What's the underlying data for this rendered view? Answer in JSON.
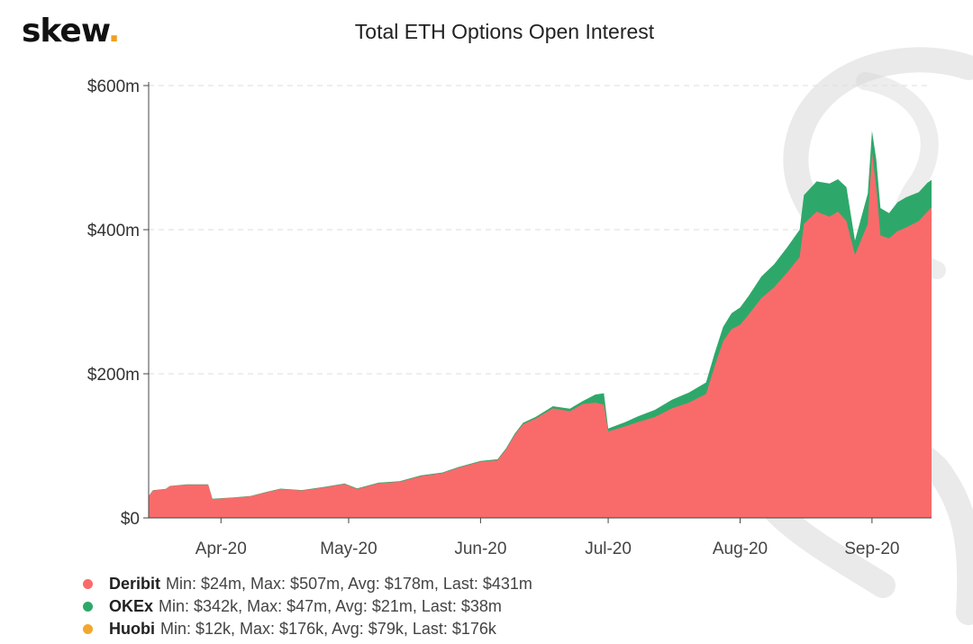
{
  "header": {
    "logo_text": "skew",
    "logo_dot": ".",
    "logo_dot_color": "#f0a020"
  },
  "chart_data": {
    "type": "area",
    "stacked": true,
    "title": "Total ETH Options Open Interest",
    "xlabel": "",
    "ylabel": "",
    "y_tick_labels": [
      "$0",
      "$200m",
      "$400m",
      "$600m"
    ],
    "y_ticks": [
      0,
      200,
      400,
      600
    ],
    "ylim": [
      0,
      600
    ],
    "y_units": "millions USD",
    "xlim": [
      "2020-03-15",
      "2020-09-15"
    ],
    "x_tick_labels": [
      "Apr-20",
      "May-20",
      "Jun-20",
      "Jul-20",
      "Aug-20",
      "Sep-20"
    ],
    "x_ticks": [
      "2020-04-01",
      "2020-05-01",
      "2020-06-01",
      "2020-07-01",
      "2020-08-01",
      "2020-09-01"
    ],
    "grid": true,
    "legend_position": "bottom-left",
    "series": [
      {
        "name": "Deribit",
        "color": "#f96b6b",
        "legend_stats": "Min: $24m, Max: $507m, Avg: $178m, Last: $431m",
        "points": [
          [
            "2020-03-15",
            30
          ],
          [
            "2020-03-16",
            38
          ],
          [
            "2020-03-19",
            40
          ],
          [
            "2020-03-20",
            44
          ],
          [
            "2020-03-24",
            46
          ],
          [
            "2020-03-29",
            46
          ],
          [
            "2020-03-30",
            26
          ],
          [
            "2020-04-04",
            28
          ],
          [
            "2020-04-08",
            30
          ],
          [
            "2020-04-12",
            36
          ],
          [
            "2020-04-15",
            40
          ],
          [
            "2020-04-20",
            38
          ],
          [
            "2020-04-25",
            42
          ],
          [
            "2020-04-30",
            47
          ],
          [
            "2020-05-03",
            40
          ],
          [
            "2020-05-08",
            48
          ],
          [
            "2020-05-13",
            50
          ],
          [
            "2020-05-18",
            58
          ],
          [
            "2020-05-23",
            62
          ],
          [
            "2020-05-27",
            70
          ],
          [
            "2020-06-01",
            78
          ],
          [
            "2020-06-05",
            80
          ],
          [
            "2020-06-07",
            95
          ],
          [
            "2020-06-09",
            115
          ],
          [
            "2020-06-11",
            130
          ],
          [
            "2020-06-14",
            138
          ],
          [
            "2020-06-18",
            152
          ],
          [
            "2020-06-22",
            148
          ],
          [
            "2020-06-25",
            158
          ],
          [
            "2020-06-28",
            160
          ],
          [
            "2020-06-30",
            157
          ],
          [
            "2020-07-01",
            120
          ],
          [
            "2020-07-05",
            127
          ],
          [
            "2020-07-08",
            133
          ],
          [
            "2020-07-12",
            140
          ],
          [
            "2020-07-16",
            152
          ],
          [
            "2020-07-20",
            160
          ],
          [
            "2020-07-24",
            172
          ],
          [
            "2020-07-26",
            210
          ],
          [
            "2020-07-28",
            245
          ],
          [
            "2020-07-30",
            262
          ],
          [
            "2020-08-01",
            268
          ],
          [
            "2020-08-03",
            282
          ],
          [
            "2020-08-06",
            305
          ],
          [
            "2020-08-09",
            320
          ],
          [
            "2020-08-12",
            340
          ],
          [
            "2020-08-15",
            362
          ],
          [
            "2020-08-16",
            408
          ],
          [
            "2020-08-19",
            425
          ],
          [
            "2020-08-22",
            418
          ],
          [
            "2020-08-24",
            425
          ],
          [
            "2020-08-26",
            412
          ],
          [
            "2020-08-28",
            365
          ],
          [
            "2020-08-31",
            408
          ],
          [
            "2020-09-01",
            507
          ],
          [
            "2020-09-02",
            458
          ],
          [
            "2020-09-03",
            392
          ],
          [
            "2020-09-05",
            388
          ],
          [
            "2020-09-07",
            398
          ],
          [
            "2020-09-09",
            403
          ],
          [
            "2020-09-12",
            412
          ],
          [
            "2020-09-14",
            425
          ],
          [
            "2020-09-15",
            431
          ]
        ]
      },
      {
        "name": "OKEx",
        "color": "#2ea86a",
        "legend_stats": "Min: $342k, Max: $47m, Avg: $21m, Last: $38m",
        "points": [
          [
            "2020-03-15",
            0.4
          ],
          [
            "2020-03-30",
            0.5
          ],
          [
            "2020-04-15",
            0.6
          ],
          [
            "2020-05-01",
            0.8
          ],
          [
            "2020-05-15",
            1
          ],
          [
            "2020-06-01",
            1
          ],
          [
            "2020-06-11",
            2
          ],
          [
            "2020-06-25",
            4
          ],
          [
            "2020-06-30",
            16
          ],
          [
            "2020-07-01",
            4
          ],
          [
            "2020-07-05",
            6
          ],
          [
            "2020-07-08",
            8
          ],
          [
            "2020-07-12",
            10
          ],
          [
            "2020-07-16",
            12
          ],
          [
            "2020-07-20",
            14
          ],
          [
            "2020-07-24",
            16
          ],
          [
            "2020-07-26",
            18
          ],
          [
            "2020-07-28",
            20
          ],
          [
            "2020-07-30",
            22
          ],
          [
            "2020-08-01",
            24
          ],
          [
            "2020-08-03",
            26
          ],
          [
            "2020-08-06",
            30
          ],
          [
            "2020-08-09",
            32
          ],
          [
            "2020-08-12",
            35
          ],
          [
            "2020-08-15",
            38
          ],
          [
            "2020-08-16",
            40
          ],
          [
            "2020-08-19",
            42
          ],
          [
            "2020-08-22",
            46
          ],
          [
            "2020-08-24",
            45
          ],
          [
            "2020-08-26",
            47
          ],
          [
            "2020-08-28",
            20
          ],
          [
            "2020-08-31",
            42
          ],
          [
            "2020-09-01",
            30
          ],
          [
            "2020-09-02",
            40
          ],
          [
            "2020-09-03",
            38
          ],
          [
            "2020-09-05",
            35
          ],
          [
            "2020-09-07",
            40
          ],
          [
            "2020-09-09",
            42
          ],
          [
            "2020-09-12",
            40
          ],
          [
            "2020-09-14",
            40
          ],
          [
            "2020-09-15",
            38
          ]
        ]
      },
      {
        "name": "Huobi",
        "color": "#f2a72e",
        "legend_stats": "Min: $12k, Max: $176k, Avg: $79k, Last: $176k",
        "points": [
          [
            "2020-03-15",
            0.012
          ],
          [
            "2020-06-01",
            0.05
          ],
          [
            "2020-08-01",
            0.1
          ],
          [
            "2020-09-15",
            0.176
          ]
        ]
      }
    ]
  },
  "watermark": {
    "color": "#d8d8d8"
  }
}
